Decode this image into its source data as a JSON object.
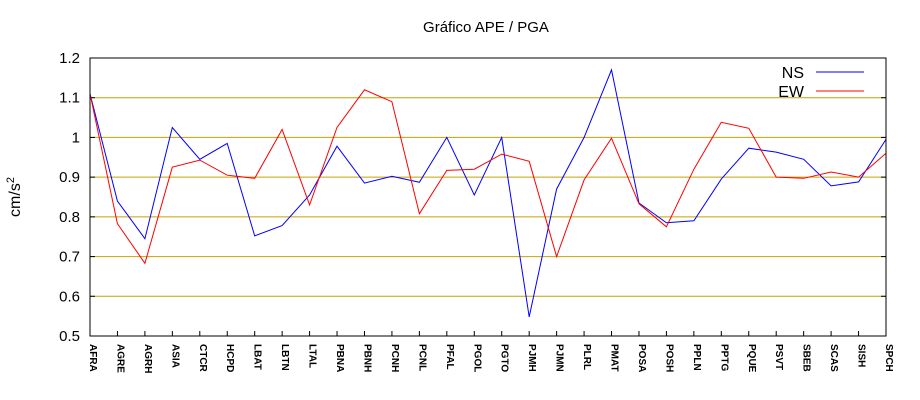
{
  "chart_data": {
    "type": "line",
    "title": "Gráfico  APE / PGA",
    "ylabel": "cm/s",
    "ylabel_sup": "2",
    "ylim": [
      0.5,
      1.2
    ],
    "yticks": [
      0.5,
      0.6,
      0.7,
      0.8,
      0.9,
      1,
      1.1,
      1.2
    ],
    "ytick_labels": [
      "0.5",
      "0.6",
      "0.7",
      "0.8",
      "0.9",
      "1",
      "1.1",
      "1.2"
    ],
    "grid": "horizontal",
    "legend_position": "top-right",
    "categories": [
      "AFRA",
      "AGRE",
      "AGRH",
      "ASIA",
      "CTCR",
      "HCPD",
      "LBAT",
      "LBTN",
      "LTAL",
      "PBNA",
      "PBNH",
      "PCNH",
      "PCNL",
      "PFAL",
      "PGOL",
      "PGTO",
      "PJMH",
      "PJMN",
      "PLRL",
      "PMAT",
      "POSA",
      "POSH",
      "PPLN",
      "PPTG",
      "PQUE",
      "PSVT",
      "SBEB",
      "SCAS",
      "SISH",
      "SPCH"
    ],
    "series": [
      {
        "name": "NS",
        "color": "#0000ff",
        "values": [
          1.11,
          0.84,
          0.745,
          1.025,
          0.945,
          0.985,
          0.752,
          0.778,
          0.855,
          0.978,
          0.885,
          0.902,
          0.887,
          1.0,
          0.855,
          1.0,
          0.548,
          0.87,
          1.0,
          1.17,
          0.835,
          0.785,
          0.79,
          0.895,
          0.973,
          0.963,
          0.945,
          0.878,
          0.888,
          0.995
        ]
      },
      {
        "name": "EW",
        "color": "#ff0000",
        "values": [
          1.11,
          0.783,
          0.683,
          0.925,
          0.943,
          0.905,
          0.897,
          1.02,
          0.83,
          1.025,
          1.12,
          1.09,
          0.808,
          0.917,
          0.92,
          0.958,
          0.94,
          0.7,
          0.893,
          0.998,
          0.833,
          0.775,
          0.92,
          1.038,
          1.023,
          0.9,
          0.897,
          0.913,
          0.9,
          0.96
        ]
      }
    ]
  }
}
